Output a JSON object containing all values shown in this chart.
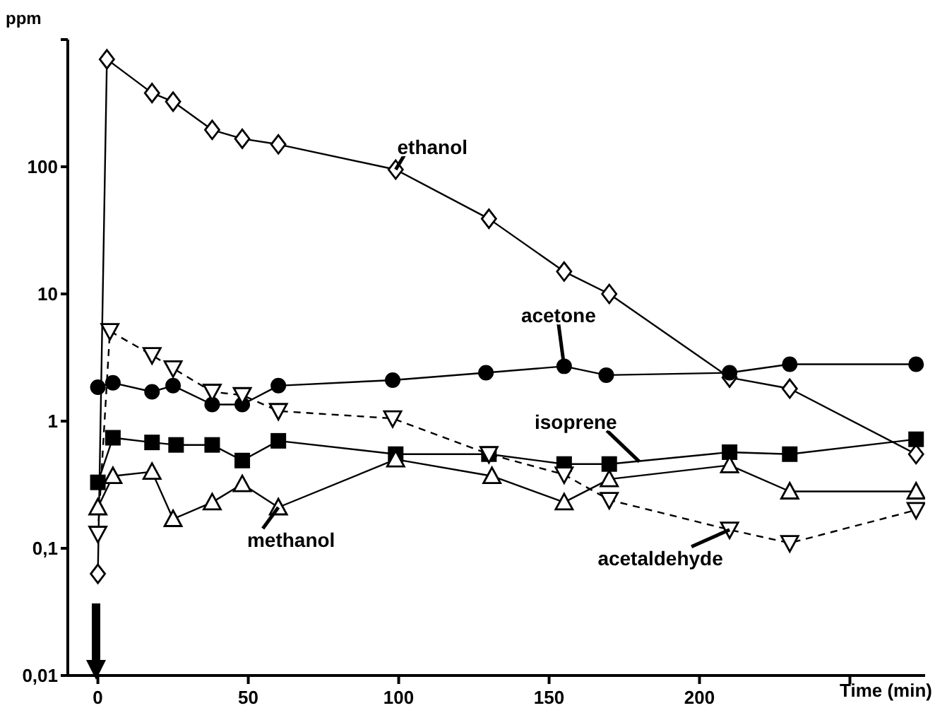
{
  "chart_data": {
    "type": "line",
    "xlabel": "Time (min)",
    "ylabel": "ppm",
    "log": "y",
    "xlim": [
      -10,
      275
    ],
    "xticks": [
      0,
      50,
      100,
      150,
      200,
      {
        "value": 250,
        "label": null
      }
    ],
    "ylim": [
      0.01,
      1000
    ],
    "yticks": [
      {
        "value": 0.01,
        "label": "0,01"
      },
      {
        "value": 0.1,
        "label": "0,1"
      },
      1,
      10,
      100,
      {
        "value": 1000,
        "label": null
      }
    ],
    "series": [
      {
        "color": "#000000",
        "marker": "diamond",
        "line_style": "solid",
        "x": [
          0,
          3,
          18,
          25,
          38,
          48,
          60,
          99,
          130,
          155,
          170,
          210,
          230,
          272
        ],
        "values": [
          0.063,
          700,
          380,
          325,
          195,
          166,
          150,
          95,
          39,
          15,
          10,
          2.2,
          1.8,
          0.55
        ]
      },
      {
        "color": "#000000",
        "marker": "circle",
        "line_style": "solid",
        "x": [
          0,
          5,
          18,
          25,
          38,
          48,
          60,
          98,
          129,
          155,
          169,
          210,
          230,
          272
        ],
        "values": [
          1.85,
          2.0,
          1.7,
          1.9,
          1.35,
          1.35,
          1.9,
          2.1,
          2.4,
          2.7,
          2.3,
          2.4,
          2.8,
          2.8
        ]
      },
      {
        "color": "#000000",
        "marker": "square",
        "line_style": "solid",
        "x": [
          0,
          5,
          18,
          26,
          38,
          48,
          60,
          99,
          130,
          155,
          170,
          210,
          230,
          272
        ],
        "values": [
          0.33,
          0.74,
          0.68,
          0.65,
          0.65,
          0.49,
          0.7,
          0.55,
          0.55,
          0.46,
          0.46,
          0.57,
          0.55,
          0.72
        ]
      },
      {
        "color": "#000000",
        "marker": "triangle",
        "line_style": "solid",
        "x": [
          0,
          5,
          18,
          25,
          38,
          48,
          60,
          99,
          131,
          155,
          170,
          210,
          230,
          272
        ],
        "values": [
          0.21,
          0.37,
          0.4,
          0.17,
          0.23,
          0.32,
          0.21,
          0.5,
          0.37,
          0.23,
          0.35,
          0.45,
          0.28,
          0.28
        ]
      },
      {
        "color": "#000000",
        "marker": "triangle-down",
        "line_style": "dashed",
        "x": [
          0,
          4,
          18,
          25,
          38,
          48,
          60,
          98,
          130,
          155,
          170,
          210,
          230,
          272
        ],
        "values": [
          0.13,
          5.1,
          3.3,
          2.6,
          1.7,
          1.6,
          1.2,
          1.05,
          0.55,
          0.38,
          0.24,
          0.14,
          0.11,
          0.2
        ]
      }
    ],
    "annotations": [
      {
        "text": "ethanol",
        "x": 99,
        "y": 95
      },
      {
        "text": "acetone",
        "x": 155,
        "y": 2.7
      },
      {
        "text": "isoprene",
        "x": 180,
        "y": 0.48
      },
      {
        "text": "methanol",
        "x": 60,
        "y": 0.21
      },
      {
        "text": "acetaldehyde",
        "x": 210,
        "y": 0.14
      }
    ]
  }
}
